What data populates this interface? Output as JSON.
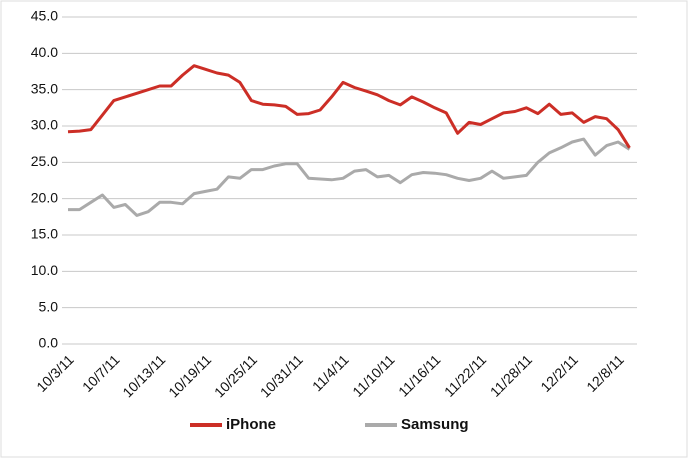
{
  "chart_data": {
    "type": "line",
    "categories": [
      "10/3/11",
      null,
      null,
      null,
      "10/7/11",
      null,
      null,
      null,
      "10/13/11",
      null,
      null,
      null,
      "10/19/11",
      null,
      null,
      null,
      "10/25/11",
      null,
      null,
      null,
      "10/31/11",
      null,
      null,
      null,
      "11/4/11",
      null,
      null,
      null,
      "11/10/11",
      null,
      null,
      null,
      "11/16/11",
      null,
      null,
      null,
      "11/22/11",
      null,
      null,
      null,
      "11/28/11",
      null,
      null,
      null,
      "12/2/11",
      null,
      null,
      null,
      "12/8/11",
      null
    ],
    "series": [
      {
        "name": "iPhone",
        "color": "#cc2e26",
        "values": [
          29.2,
          29.3,
          29.5,
          31.5,
          33.5,
          34.0,
          34.5,
          35.0,
          35.5,
          35.5,
          37.0,
          38.3,
          37.8,
          37.3,
          37.0,
          36.0,
          33.5,
          33.0,
          32.9,
          32.7,
          31.6,
          31.7,
          32.2,
          34.0,
          36.0,
          35.3,
          34.8,
          34.3,
          33.5,
          32.9,
          34.0,
          33.3,
          32.5,
          31.8,
          29.0,
          30.5,
          30.2,
          31.0,
          31.8,
          32.0,
          32.5,
          31.7,
          33.0,
          31.6,
          31.8,
          30.5,
          31.3,
          31.0,
          29.5,
          27.0
        ]
      },
      {
        "name": "Samsung",
        "color": "#aaaaaa",
        "values": [
          18.5,
          18.5,
          19.5,
          20.5,
          18.8,
          19.2,
          17.7,
          18.2,
          19.5,
          19.5,
          19.3,
          20.7,
          21.0,
          21.3,
          23.0,
          22.8,
          24.0,
          24.0,
          24.5,
          24.8,
          24.8,
          22.8,
          22.7,
          22.6,
          22.8,
          23.8,
          24.0,
          23.0,
          23.2,
          22.2,
          23.3,
          23.6,
          23.5,
          23.3,
          22.8,
          22.5,
          22.8,
          23.8,
          22.8,
          23.0,
          23.2,
          25.0,
          26.3,
          27.0,
          27.8,
          28.2,
          26.0,
          27.3,
          27.8,
          26.8
        ]
      }
    ],
    "ylim": [
      0,
      45
    ],
    "yticks": [
      {
        "value": 0,
        "label": "0.0"
      },
      {
        "value": 5,
        "label": "5.0"
      },
      {
        "value": 10,
        "label": "10.0"
      },
      {
        "value": 15,
        "label": "15.0"
      },
      {
        "value": 20,
        "label": "20.0"
      },
      {
        "value": 25,
        "label": "25.0"
      },
      {
        "value": 30,
        "label": "30.0"
      },
      {
        "value": 35,
        "label": "35.0"
      },
      {
        "value": 40,
        "label": "40.0"
      },
      {
        "value": 45,
        "label": "45.0"
      }
    ],
    "grid": true,
    "legend": "bottom"
  }
}
